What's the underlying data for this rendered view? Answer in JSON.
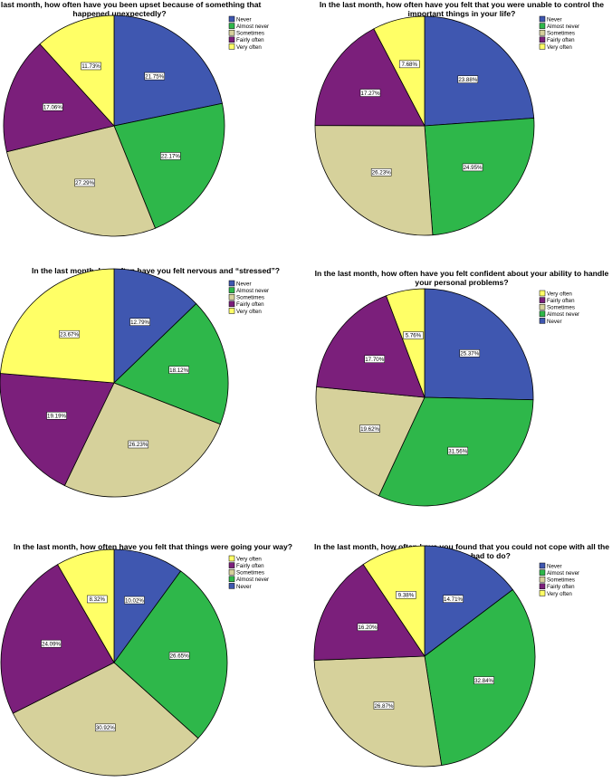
{
  "colors": {
    "Never": "#3f57b0",
    "Almost never": "#2eb74a",
    "Sometimes": "#d6d19b",
    "Fairly often": "#7b1f7b",
    "Very often": "#ffff66"
  },
  "chart_data": [
    {
      "type": "pie",
      "title_lines": [
        "In the last month, how often have you been upset because of something that",
        "happened unexpectedly?"
      ],
      "legend": [
        "Never",
        "Almost never",
        "Sometimes",
        "Fairly often",
        "Very often"
      ],
      "slices": [
        {
          "category": "Never",
          "value": 21.75,
          "label": "21.75%"
        },
        {
          "category": "Almost never",
          "value": 22.17,
          "label": "22.17%"
        },
        {
          "category": "Sometimes",
          "value": 27.29,
          "label": "27.29%"
        },
        {
          "category": "Fairly often",
          "value": 17.06,
          "label": "17.06%"
        },
        {
          "category": "Very often",
          "value": 11.73,
          "label": "11.73%"
        }
      ]
    },
    {
      "type": "pie",
      "title_lines": [
        "In the last month, how often have you felt that you were unable to control the",
        "important things in your life?"
      ],
      "legend": [
        "Never",
        "Almost never",
        "Sometimes",
        "Fairly often",
        "Very often"
      ],
      "slices": [
        {
          "category": "Never",
          "value": 23.88,
          "label": "23.88%"
        },
        {
          "category": "Almost never",
          "value": 24.95,
          "label": "24.95%"
        },
        {
          "category": "Sometimes",
          "value": 26.23,
          "label": "26.23%"
        },
        {
          "category": "Fairly often",
          "value": 17.27,
          "label": "17.27%"
        },
        {
          "category": "Very often",
          "value": 7.68,
          "label": "7.68%"
        }
      ]
    },
    {
      "type": "pie",
      "title_lines": [
        "In the last month, how often have you felt nervous and “stressed”?"
      ],
      "legend": [
        "Never",
        "Almost never",
        "Sometimes",
        "Fairly often",
        "Very often"
      ],
      "slices": [
        {
          "category": "Never",
          "value": 12.79,
          "label": "12.79%"
        },
        {
          "category": "Almost never",
          "value": 18.12,
          "label": "18.12%"
        },
        {
          "category": "Sometimes",
          "value": 26.23,
          "label": "26.23%"
        },
        {
          "category": "Fairly often",
          "value": 19.19,
          "label": "19.19%"
        },
        {
          "category": "Very often",
          "value": 23.67,
          "label": "23.67%"
        }
      ]
    },
    {
      "type": "pie",
      "title_lines": [
        "In the last month, how often have you felt confident about your ability to handle",
        "your personal problems?"
      ],
      "legend": [
        "Very often",
        "Fairly often",
        "Sometimes",
        "Almost never",
        "Never"
      ],
      "slices": [
        {
          "category": "Never",
          "value": 25.37,
          "label": "25.37%"
        },
        {
          "category": "Almost never",
          "value": 31.56,
          "label": "31.56%"
        },
        {
          "category": "Sometimes",
          "value": 19.62,
          "label": "19.62%"
        },
        {
          "category": "Fairly often",
          "value": 17.7,
          "label": "17.70%"
        },
        {
          "category": "Very often",
          "value": 5.76,
          "label": "5.76%"
        }
      ]
    },
    {
      "type": "pie",
      "title_lines": [
        "In the last month, how often have you felt that things were going your way?"
      ],
      "legend": [
        "Very often",
        "Fairly often",
        "Sometimes",
        "Almost never",
        "Never"
      ],
      "slices": [
        {
          "category": "Never",
          "value": 10.02,
          "label": "10.02%"
        },
        {
          "category": "Almost never",
          "value": 26.65,
          "label": "26.65%"
        },
        {
          "category": "Sometimes",
          "value": 30.92,
          "label": "30.92%"
        },
        {
          "category": "Fairly often",
          "value": 24.09,
          "label": "24.09%"
        },
        {
          "category": "Very often",
          "value": 8.32,
          "label": "8.32%"
        }
      ]
    },
    {
      "type": "pie",
      "title_lines": [
        "In the last month, how often have you found that you could not cope with all the",
        "things that you had to do?"
      ],
      "legend": [
        "Never",
        "Almost never",
        "Sometimes",
        "Fairly often",
        "Very often"
      ],
      "slices": [
        {
          "category": "Never",
          "value": 14.71,
          "label": "14.71%"
        },
        {
          "category": "Almost never",
          "value": 32.84,
          "label": "32.84%"
        },
        {
          "category": "Sometimes",
          "value": 26.87,
          "label": "26.87%"
        },
        {
          "category": "Fairly often",
          "value": 16.2,
          "label": "16.20%"
        },
        {
          "category": "Very often",
          "value": 9.38,
          "label": "9.38%"
        }
      ]
    }
  ]
}
